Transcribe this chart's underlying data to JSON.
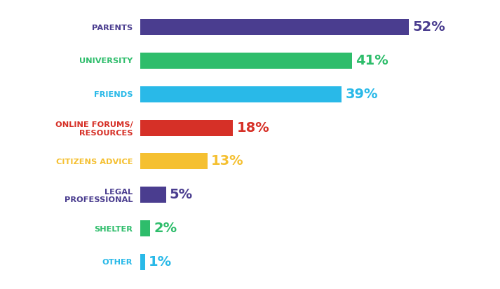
{
  "categories": [
    "PARENTS",
    "UNIVERSITY",
    "FRIENDS",
    "ONLINE FORUMS/\nRESOURCES",
    "CITIZENS ADVICE",
    "LEGAL\nPROFESSIONAL",
    "SHELTER",
    "OTHER"
  ],
  "values": [
    52,
    41,
    39,
    18,
    13,
    5,
    2,
    1
  ],
  "bar_colors": [
    "#4a3d8f",
    "#2ebd6b",
    "#29b9e8",
    "#d63027",
    "#f5c031",
    "#4a3d8f",
    "#2ebd6b",
    "#29b9e8"
  ],
  "label_colors": [
    "#4a3d8f",
    "#2ebd6b",
    "#29b9e8",
    "#d63027",
    "#f5c031",
    "#4a3d8f",
    "#2ebd6b",
    "#29b9e8"
  ],
  "tick_colors": [
    "#4a3d8f",
    "#2ebd6b",
    "#29b9e8",
    "#d63027",
    "#f5c031",
    "#4a3d8f",
    "#2ebd6b",
    "#29b9e8"
  ],
  "background_color": "#ffffff",
  "max_val": 58,
  "label_fontsize": 14,
  "tick_fontsize": 8.2,
  "bar_height": 0.48
}
